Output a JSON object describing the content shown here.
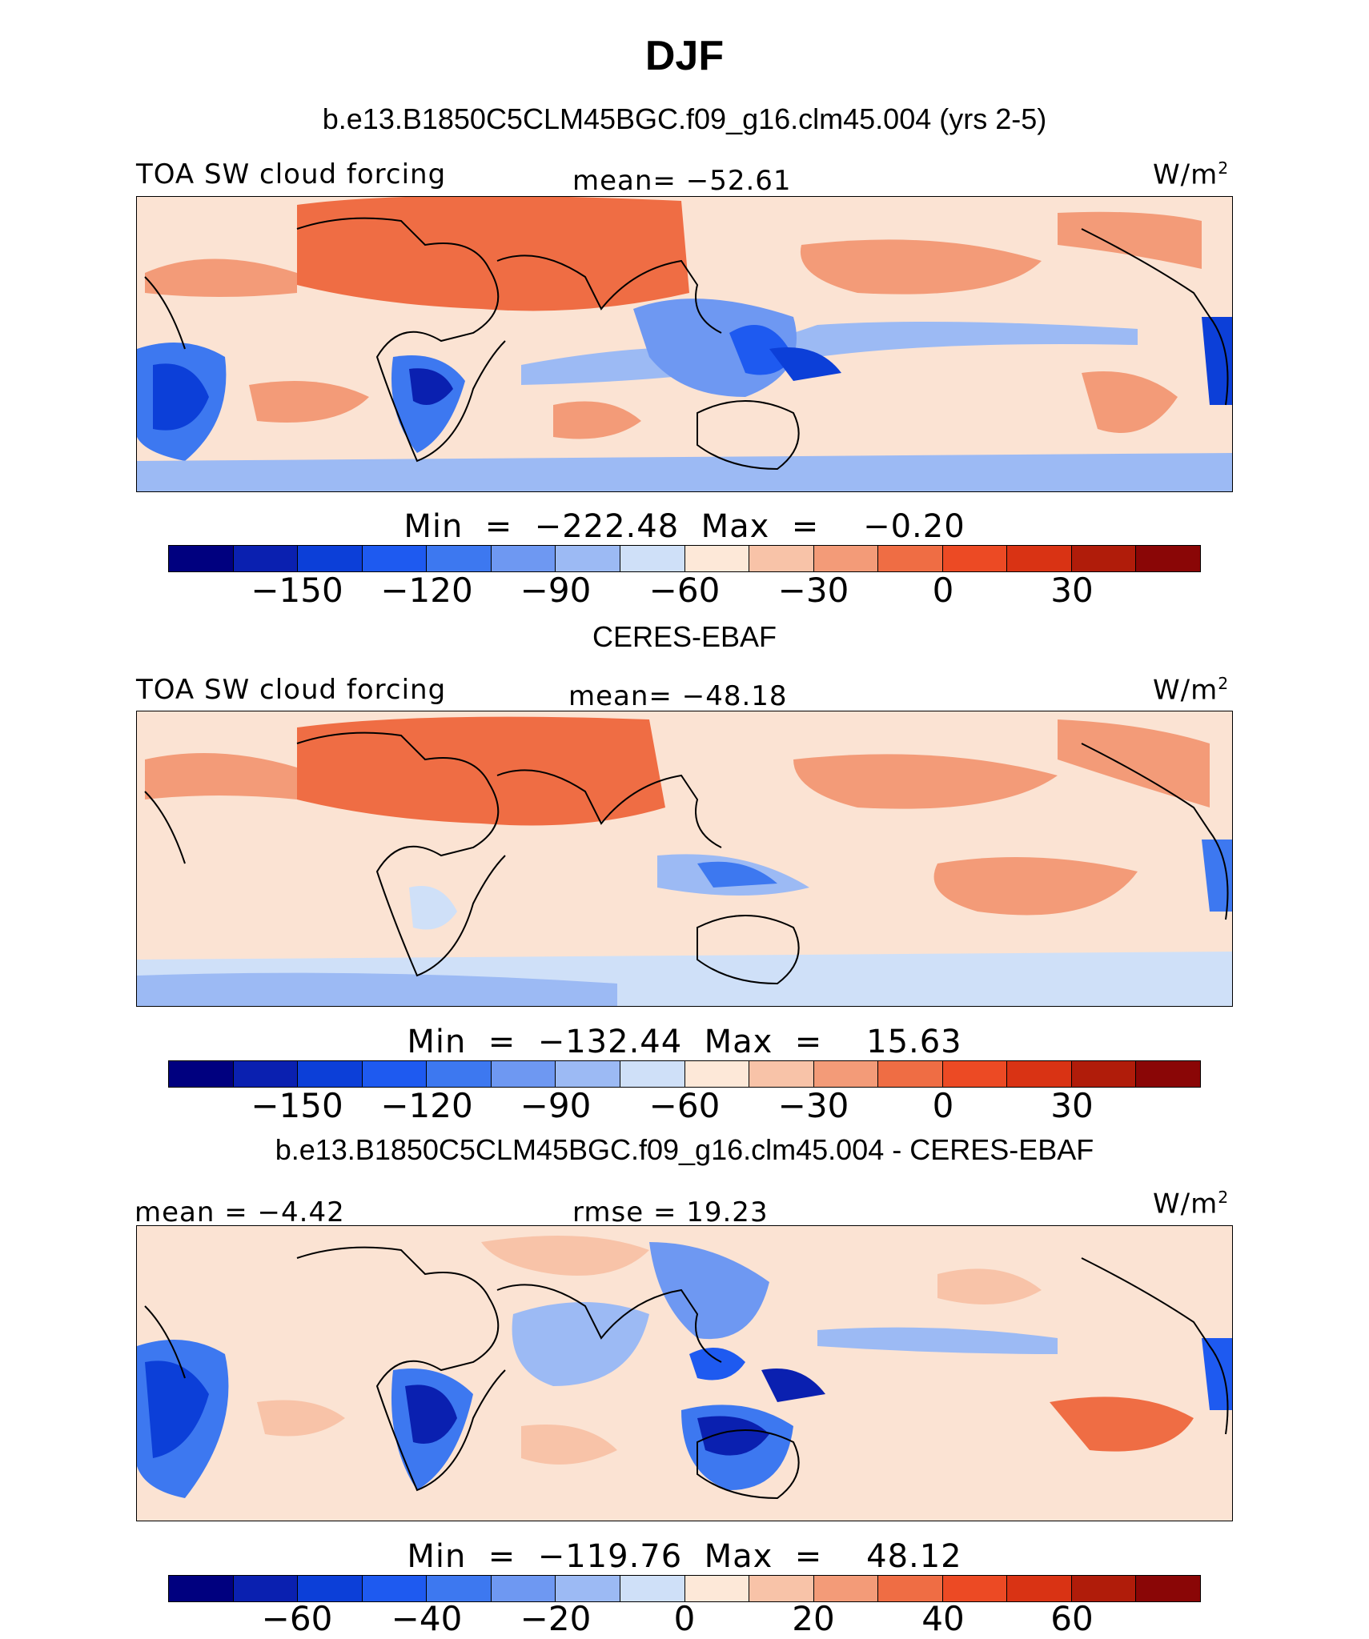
{
  "title": "DJF",
  "panel1": {
    "case_title": "b.e13.B1850C5CLM45BGC.f09_g16.clm45.004 (yrs 2-5)",
    "variable": "TOA SW cloud forcing",
    "mean_label": "mean= −52.61",
    "units": "W/m",
    "units_exp": "2",
    "minmax": "Min  =  −222.48  Max  =    −0.20",
    "ticks": [
      "−150",
      "−120",
      "−90",
      "−60",
      "−30",
      "0",
      "30"
    ]
  },
  "panel2": {
    "case_title": "CERES-EBAF",
    "variable": "TOA SW cloud forcing",
    "mean_label": "mean= −48.18",
    "units": "W/m",
    "units_exp": "2",
    "minmax": "Min  =  −132.44  Max  =    15.63",
    "ticks": [
      "−150",
      "−120",
      "−90",
      "−60",
      "−30",
      "0",
      "30"
    ]
  },
  "panel3": {
    "case_title": "b.e13.B1850C5CLM45BGC.f09_g16.clm45.004 - CERES-EBAF",
    "mean_label": "mean =   −4.42",
    "rmse_label": "rmse  =   19.23",
    "units": "W/m",
    "units_exp": "2",
    "minmax": "Min  =  −119.76  Max  =    48.12",
    "ticks": [
      "−60",
      "−40",
      "−20",
      "0",
      "20",
      "40",
      "60"
    ]
  },
  "colorbar": [
    "#00007f",
    "#0a20b0",
    "#0c3fd8",
    "#1e5af0",
    "#3d78f0",
    "#6e98f2",
    "#9cbaf4",
    "#cfe0f8",
    "#fde8d8",
    "#f8c3a8",
    "#f39b78",
    "#ef6d44",
    "#ec4a24",
    "#d93314",
    "#b01c0a",
    "#8a0606"
  ]
}
